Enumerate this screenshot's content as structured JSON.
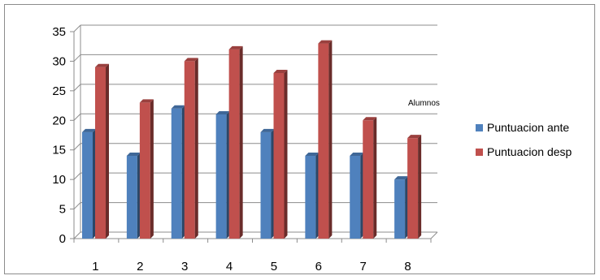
{
  "chart_data": {
    "type": "bar",
    "title": "",
    "xlabel": "",
    "ylabel": "",
    "annotation": "Alumnos",
    "categories": [
      "1",
      "2",
      "3",
      "4",
      "5",
      "6",
      "7",
      "8"
    ],
    "ylim": [
      0,
      35
    ],
    "yticks": [
      "0",
      "5",
      "10",
      "15",
      "20",
      "25",
      "30",
      "35"
    ],
    "grid": true,
    "legend_position": "right",
    "series": [
      {
        "name": "Puntuacion ante",
        "color": "#4f81bd",
        "values": [
          18,
          14,
          22,
          21,
          18,
          14,
          14,
          10
        ]
      },
      {
        "name": "Puntuacion desp",
        "color": "#c0504d",
        "values": [
          29,
          23,
          30,
          32,
          28,
          33,
          20,
          17
        ]
      }
    ]
  }
}
